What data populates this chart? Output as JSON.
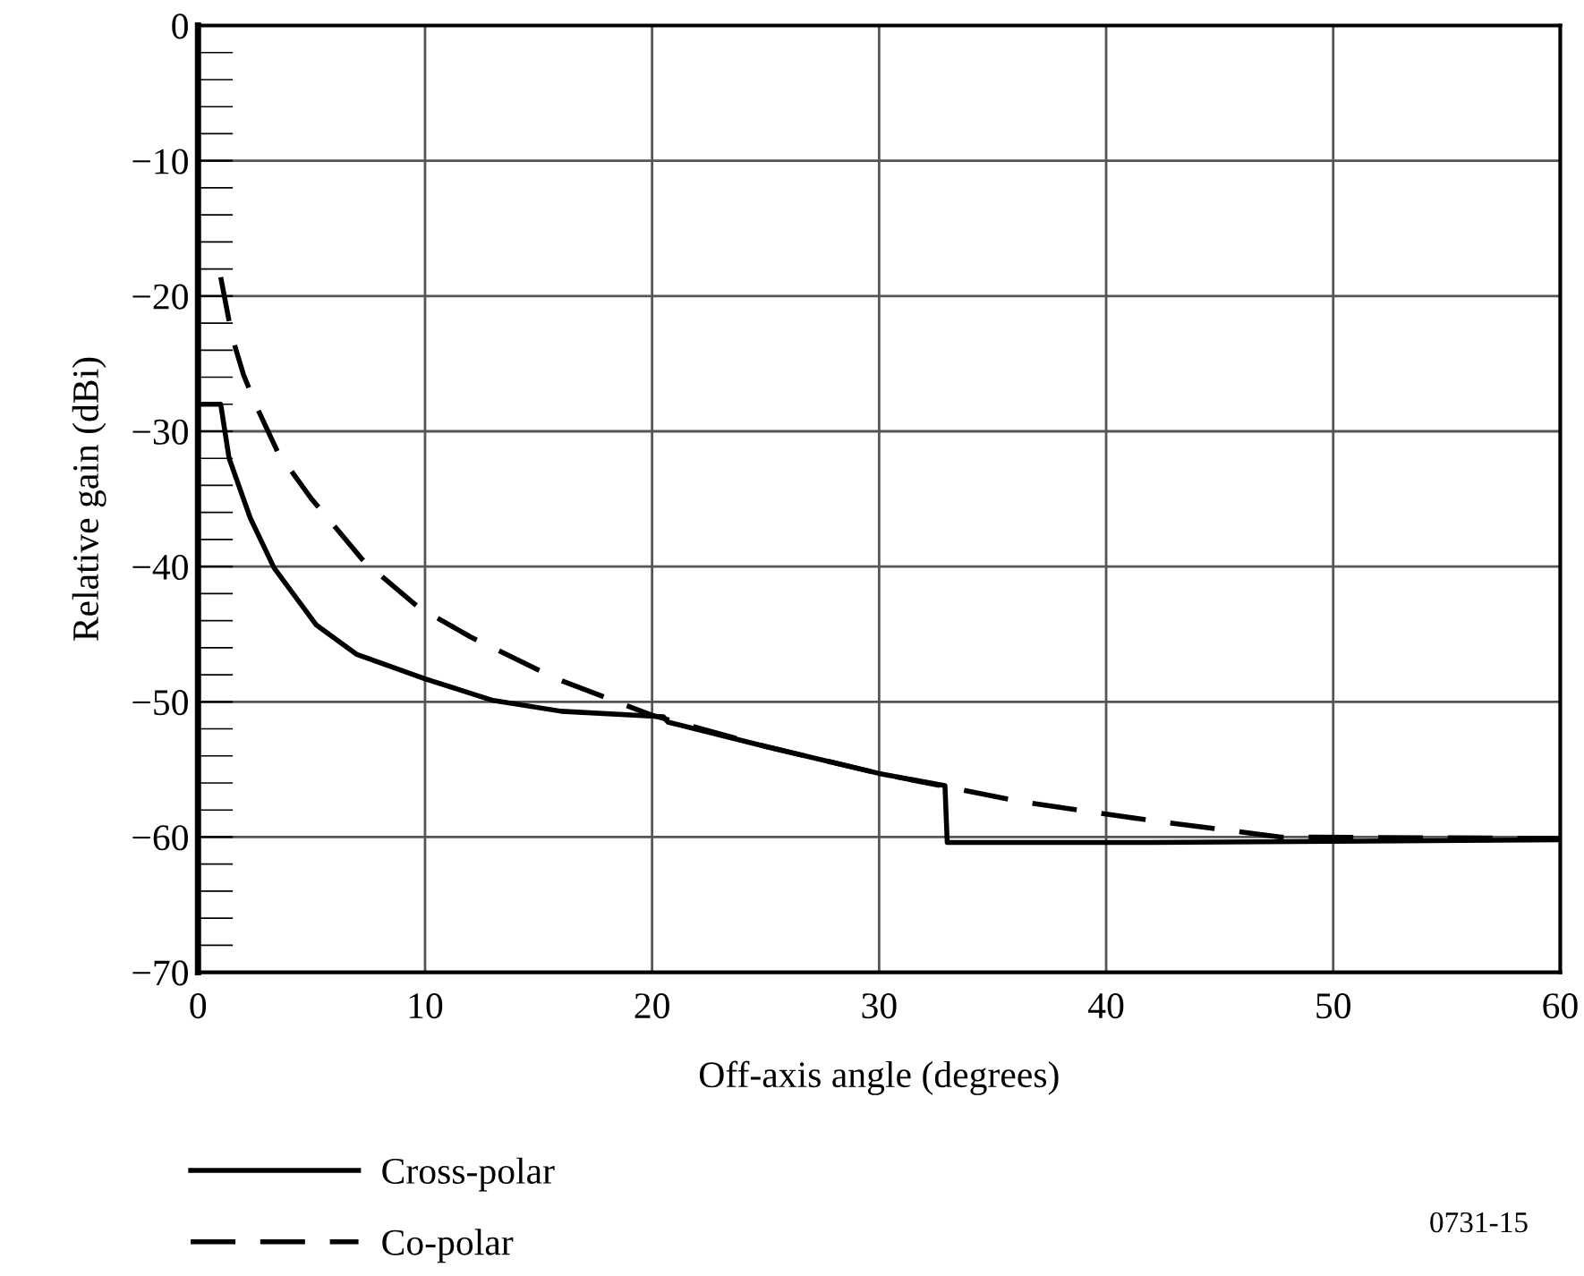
{
  "chart_data": {
    "type": "line",
    "xlabel": "Off-axis angle (degrees)",
    "ylabel": "Relative gain (dBi)",
    "xlim": [
      0,
      60
    ],
    "xticks": [
      0,
      10,
      20,
      30,
      40,
      50,
      60
    ],
    "ylim": [
      -70,
      0
    ],
    "yticks": [
      0,
      -10,
      -20,
      -30,
      -40,
      -50,
      -60,
      -70
    ],
    "grid": true,
    "legend": "bottom left",
    "marker": "none",
    "series": [
      {
        "name": "Cross-polar",
        "color": "#000000",
        "line_style": "solid",
        "x": [
          0,
          1,
          1.37,
          2.3,
          3.35,
          5.2,
          7,
          10,
          13,
          16,
          20.5,
          20.7,
          25,
          30,
          32.9,
          33,
          42,
          60
        ],
        "values": [
          -28,
          -28,
          -32,
          -36.4,
          -40.1,
          -44.3,
          -46.5,
          -48.3,
          -49.9,
          -50.7,
          -51.1,
          -51.5,
          -53.3,
          -55.3,
          -56.2,
          -60.4,
          -60.4,
          -60.2
        ]
      },
      {
        "name": "Co-polar",
        "color": "#000000",
        "line_style": "dashed",
        "x": [
          1,
          1.5,
          2,
          2.56,
          3.5,
          5,
          7.3,
          9.7,
          12,
          15.8,
          20,
          25,
          30,
          33,
          36.3,
          42.1,
          47.7,
          60
        ],
        "values": [
          -18.6,
          -23,
          -25.8,
          -28.1,
          -31.5,
          -35,
          -39.6,
          -43,
          -45.2,
          -48.3,
          -51,
          -53.3,
          -55.3,
          -56.3,
          -57.4,
          -58.8,
          -60,
          -60.1
        ]
      }
    ],
    "annotations": [
      "0731-15"
    ]
  }
}
